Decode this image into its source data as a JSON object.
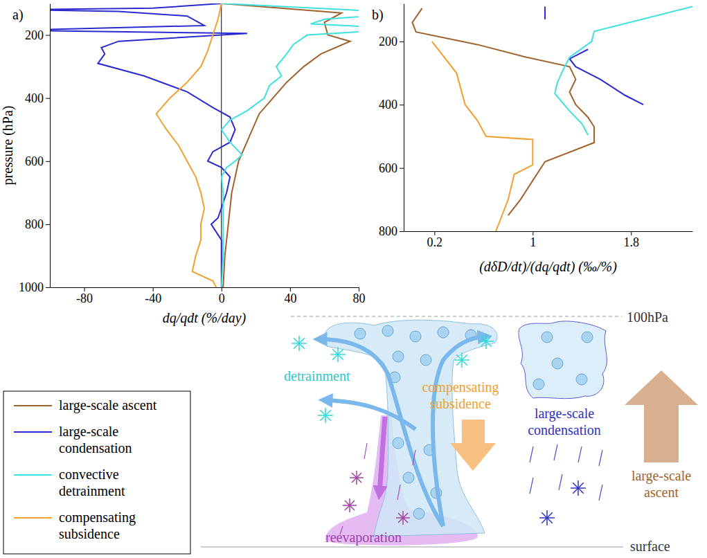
{
  "chart_data": [
    {
      "type": "line",
      "title": "a)",
      "xlabel": "dq/qdt (%/day)",
      "ylabel": "pressure (hPa)",
      "xlim": [
        -100,
        80
      ],
      "xticks": [
        -80,
        -40,
        0,
        40,
        80
      ],
      "ylim": [
        100,
        1000
      ],
      "yticks": [
        200,
        400,
        600,
        800,
        1000
      ],
      "legend": "bottom-left",
      "series": [
        {
          "name": "large-scale ascent",
          "color": "#a0622d",
          "y": [
            100,
            130,
            160,
            200,
            220,
            260,
            300,
            350,
            400,
            450,
            500,
            600,
            700,
            800,
            900,
            1000
          ],
          "x": [
            0,
            70,
            60,
            62,
            75,
            58,
            48,
            38,
            30,
            22,
            18,
            10,
            6,
            4,
            2,
            1
          ]
        },
        {
          "name": "large-scale condensation",
          "color": "#2a2ad0",
          "y": [
            100,
            115,
            120,
            125,
            140,
            170,
            185,
            195,
            220,
            240,
            260,
            290,
            330,
            380,
            430,
            460,
            500,
            540,
            570,
            600,
            620,
            650,
            700,
            780,
            800,
            850,
            1000
          ],
          "x": [
            0,
            -40,
            -120,
            -60,
            -20,
            -10,
            -120,
            15,
            -60,
            -70,
            -68,
            -72,
            -45,
            -20,
            -5,
            5,
            8,
            5,
            -5,
            -8,
            0,
            5,
            3,
            -2,
            -6,
            0,
            0
          ]
        },
        {
          "name": "convective detrainment",
          "color": "#3fe0e0",
          "y": [
            100,
            130,
            150,
            165,
            180,
            200,
            230,
            260,
            300,
            330,
            360,
            400,
            440,
            470,
            500,
            540,
            580,
            600,
            620,
            650,
            700,
            800,
            900,
            1000
          ],
          "x": [
            0,
            110,
            60,
            52,
            110,
            50,
            42,
            38,
            32,
            35,
            28,
            25,
            15,
            5,
            0,
            5,
            12,
            8,
            3,
            0,
            1,
            1,
            1,
            0
          ]
        },
        {
          "name": "compensating subsidence",
          "color": "#f0a030",
          "y": [
            100,
            150,
            200,
            250,
            300,
            350,
            400,
            450,
            500,
            550,
            600,
            650,
            700,
            750,
            800,
            850,
            900,
            950,
            980,
            1000
          ],
          "x": [
            0,
            -2,
            -5,
            -8,
            -12,
            -20,
            -30,
            -38,
            -32,
            -25,
            -20,
            -15,
            -12,
            -10,
            -12,
            -12,
            -15,
            -17,
            -5,
            -3
          ]
        }
      ]
    },
    {
      "type": "line",
      "title": "b)",
      "xlabel": "(dδD/dt)/(dq/qdt) (‰/%)",
      "xlim": [
        -0.05,
        2.3
      ],
      "xticks": [
        0.2,
        1,
        1.8
      ],
      "ylim": [
        80,
        800
      ],
      "yticks": [
        200,
        400,
        600,
        800
      ],
      "series": [
        {
          "color": "#a0622d",
          "y": [
            95,
            140,
            170,
            210,
            250,
            280,
            320,
            360,
            400,
            440,
            470,
            520,
            580,
            640,
            700,
            750
          ],
          "x": [
            0.1,
            0.02,
            0.05,
            0.55,
            0.95,
            1.3,
            1.35,
            1.3,
            1.35,
            1.45,
            1.5,
            1.5,
            1.1,
            1.0,
            0.9,
            0.8
          ]
        },
        {
          "color": "#2a2ad0",
          "y": [
            90,
            130,
            180,
            225,
            255,
            280,
            320,
            370,
            400
          ],
          "x": [
            1.1,
            1.1,
            null,
            1.45,
            1.3,
            1.35,
            1.55,
            1.75,
            1.9
          ]
        },
        {
          "color": "#3fe0e0",
          "y": [
            90,
            168,
            200,
            250,
            288,
            330,
            365,
            420,
            460,
            496
          ],
          "x": [
            2.3,
            1.5,
            1.48,
            1.3,
            1.25,
            1.2,
            1.18,
            1.3,
            1.4,
            1.45
          ]
        },
        {
          "color": "#f0a030",
          "y": [
            200,
            300,
            400,
            450,
            500,
            510,
            590,
            620,
            700,
            800
          ],
          "x": [
            0.18,
            0.38,
            0.45,
            0.55,
            0.62,
            1.0,
            1.0,
            0.85,
            0.8,
            0.7
          ]
        }
      ]
    }
  ],
  "diagram": {
    "top_level": "100hPa",
    "bottom_level": "surface",
    "labels": [
      {
        "text": "detrainment",
        "color": "#30c8c8"
      },
      {
        "text": "compensating subsidence",
        "color": "#f0a030"
      },
      {
        "text": "large-scale condensation",
        "color": "#3030c0"
      },
      {
        "text": "large-scale ascent",
        "color": "#a0622d"
      },
      {
        "text": "reevaporation",
        "color": "#a040b0"
      }
    ]
  }
}
